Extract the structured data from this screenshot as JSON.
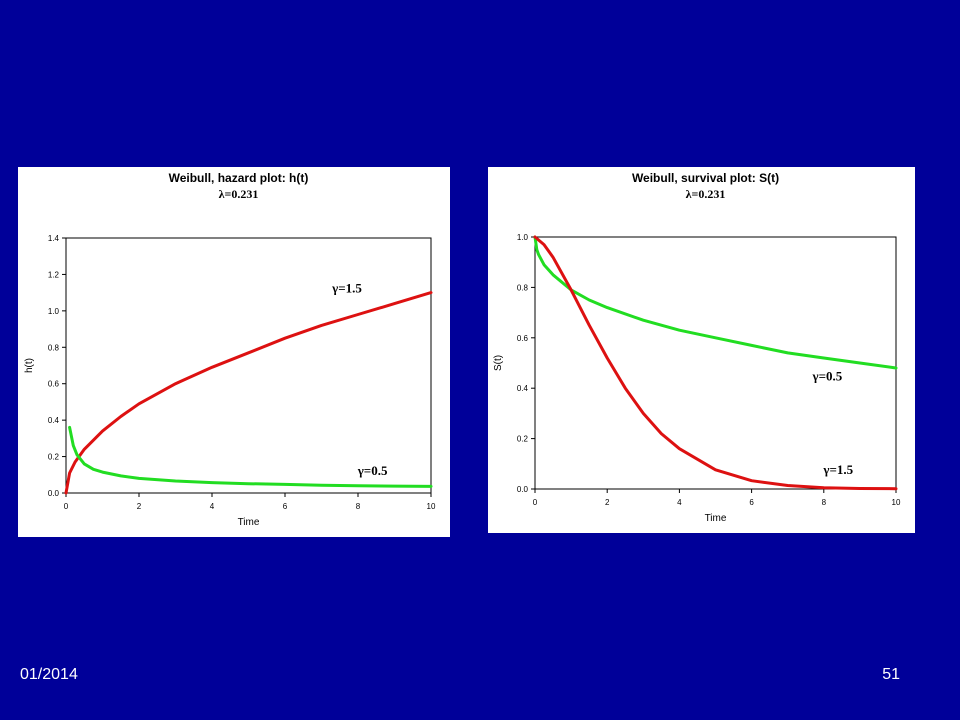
{
  "slide": {
    "footer_date": "01/2014",
    "page_number": "51",
    "background_color": "#000099"
  },
  "chart_data": [
    {
      "type": "line",
      "title": "Weibull, hazard plot: h(t)",
      "subtitle": "λ=0.231",
      "xlabel": "Time",
      "ylabel": "h(t)",
      "xlim": [
        0,
        10
      ],
      "ylim": [
        0,
        1.4
      ],
      "xticks": [
        0,
        2,
        4,
        6,
        8,
        10
      ],
      "xtick_labels": [
        "0",
        "2",
        "4",
        "6",
        "8",
        "10"
      ],
      "yticks": [
        0,
        0.2,
        0.4,
        0.6,
        0.8,
        1.0,
        1.2,
        1.4
      ],
      "ytick_labels": [
        "0.0",
        "0.2",
        "0.4",
        "0.6",
        "0.8",
        "1.0",
        "1.2",
        "1.4"
      ],
      "grid": false,
      "series": [
        {
          "name": "γ=1.5",
          "color": "#dd1111",
          "x": [
            0,
            0.1,
            0.25,
            0.5,
            1,
            1.5,
            2,
            3,
            4,
            5,
            6,
            7,
            8,
            9,
            10
          ],
          "y": [
            0,
            0.11,
            0.17,
            0.24,
            0.34,
            0.42,
            0.49,
            0.6,
            0.69,
            0.77,
            0.85,
            0.92,
            0.98,
            1.04,
            1.1
          ]
        },
        {
          "name": "γ=0.5",
          "color": "#22dd22",
          "x": [
            0.1,
            0.2,
            0.3,
            0.5,
            0.75,
            1,
            1.5,
            2,
            3,
            4,
            5,
            6,
            7,
            8,
            9,
            10
          ],
          "y": [
            0.36,
            0.26,
            0.21,
            0.16,
            0.13,
            0.115,
            0.094,
            0.08,
            0.066,
            0.057,
            0.051,
            0.047,
            0.043,
            0.04,
            0.038,
            0.036
          ]
        }
      ],
      "annotations": [
        {
          "text": "γ=1.5",
          "x": 7.7,
          "y": 1.1
        },
        {
          "text": "γ=0.5",
          "x": 8.4,
          "y": 0.1
        }
      ]
    },
    {
      "type": "line",
      "title": "Weibull, survival plot: S(t)",
      "subtitle": "λ=0.231",
      "xlabel": "Time",
      "ylabel": "S(t)",
      "xlim": [
        0,
        10
      ],
      "ylim": [
        0,
        1.0
      ],
      "xticks": [
        0,
        2,
        4,
        6,
        8,
        10
      ],
      "xtick_labels": [
        "0",
        "2",
        "4",
        "6",
        "8",
        "10"
      ],
      "yticks": [
        0,
        0.2,
        0.4,
        0.6,
        0.8,
        1.0
      ],
      "ytick_labels": [
        "0.0",
        "0.2",
        "0.4",
        "0.6",
        "0.8",
        "1.0"
      ],
      "grid": false,
      "series": [
        {
          "name": "γ=0.5",
          "color": "#22dd22",
          "x": [
            0,
            0.05,
            0.1,
            0.25,
            0.5,
            1,
            1.5,
            2,
            3,
            4,
            5,
            6,
            7,
            8,
            9,
            10
          ],
          "y": [
            1.0,
            0.95,
            0.93,
            0.89,
            0.85,
            0.79,
            0.75,
            0.72,
            0.67,
            0.63,
            0.6,
            0.57,
            0.54,
            0.52,
            0.5,
            0.48
          ]
        },
        {
          "name": "γ=1.5",
          "color": "#dd1111",
          "x": [
            0,
            0.25,
            0.5,
            1,
            1.5,
            2,
            2.5,
            3,
            3.5,
            4,
            5,
            6,
            7,
            8,
            9,
            10
          ],
          "y": [
            1.0,
            0.97,
            0.92,
            0.79,
            0.65,
            0.52,
            0.4,
            0.3,
            0.22,
            0.16,
            0.076,
            0.033,
            0.014,
            0.005,
            0.002,
            0.001
          ]
        }
      ],
      "annotations": [
        {
          "text": "γ=0.5",
          "x": 8.1,
          "y": 0.43
        },
        {
          "text": "γ=1.5",
          "x": 8.4,
          "y": 0.06
        }
      ]
    }
  ]
}
